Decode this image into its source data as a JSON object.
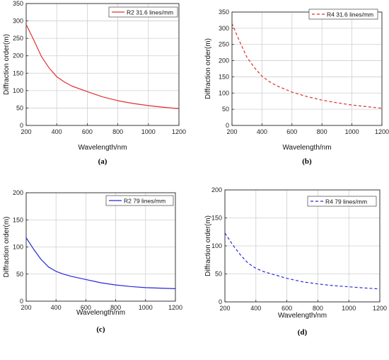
{
  "chart_data": [
    {
      "type": "line",
      "panel_label": "(a)",
      "xlabel": "Wavelength/nm",
      "ylabel": "Diffraction order(m)",
      "xlim": [
        200,
        1200
      ],
      "ylim": [
        0,
        350
      ],
      "xticks": [
        200,
        400,
        600,
        800,
        1000,
        1200
      ],
      "yticks": [
        0,
        50,
        100,
        150,
        200,
        250,
        300,
        350
      ],
      "grid": true,
      "legend_position": "top-right",
      "series": [
        {
          "name": "R2 31.6 lines/mm",
          "color": "#e03030",
          "dash": "solid",
          "x": [
            200,
            250,
            300,
            350,
            400,
            450,
            500,
            600,
            700,
            800,
            900,
            1000,
            1100,
            1200
          ],
          "y": [
            290,
            245,
            198,
            165,
            140,
            125,
            113,
            97,
            82,
            71,
            63,
            57,
            52,
            48
          ]
        }
      ]
    },
    {
      "type": "line",
      "panel_label": "(b)",
      "xlabel": "Wavelength/nm",
      "ylabel": "Diffraction order(m)",
      "xlim": [
        200,
        1200
      ],
      "ylim": [
        0,
        350
      ],
      "xticks": [
        200,
        400,
        600,
        800,
        1000,
        1200
      ],
      "yticks": [
        0,
        50,
        100,
        150,
        200,
        250,
        300,
        350
      ],
      "grid": true,
      "legend_position": "top-right",
      "series": [
        {
          "name": "R4 31.6 lines/mm",
          "color": "#e03030",
          "dash": "dashed",
          "x": [
            200,
            250,
            300,
            350,
            400,
            450,
            500,
            600,
            700,
            800,
            900,
            1000,
            1100,
            1200
          ],
          "y": [
            315,
            260,
            210,
            178,
            152,
            135,
            122,
            103,
            89,
            78,
            70,
            63,
            58,
            53
          ]
        }
      ]
    },
    {
      "type": "line",
      "panel_label": "(c)",
      "xlabel": "Wavelength/nm",
      "ylabel": "Diffraction order(m)",
      "xlim": [
        200,
        1200
      ],
      "ylim": [
        0,
        200
      ],
      "xticks": [
        200,
        400,
        600,
        800,
        1000,
        1200
      ],
      "yticks": [
        0,
        50,
        100,
        150,
        200
      ],
      "grid": true,
      "legend_position": "top-right",
      "series": [
        {
          "name": "R2 79 lines/mm",
          "color": "#2828d8",
          "dash": "solid",
          "x": [
            200,
            250,
            300,
            350,
            400,
            450,
            500,
            600,
            700,
            800,
            900,
            1000,
            1100,
            1200
          ],
          "y": [
            117,
            96,
            77,
            63,
            55,
            50,
            46,
            40,
            34,
            30,
            27,
            25,
            24,
            23
          ]
        }
      ]
    },
    {
      "type": "line",
      "panel_label": "(d)",
      "xlabel": "Wavelength/nm",
      "ylabel": "Diffraction order(m)",
      "xlim": [
        200,
        1200
      ],
      "ylim": [
        0,
        200
      ],
      "xticks": [
        200,
        400,
        600,
        800,
        1000,
        1200
      ],
      "yticks": [
        0,
        50,
        100,
        150,
        200
      ],
      "grid": true,
      "legend_position": "top-right",
      "series": [
        {
          "name": "R4 79 lines/mm",
          "color": "#2828d8",
          "dash": "dashed",
          "x": [
            200,
            250,
            300,
            350,
            400,
            450,
            500,
            600,
            700,
            800,
            900,
            1000,
            1100,
            1200
          ],
          "y": [
            123,
            102,
            84,
            69,
            60,
            54,
            50,
            42,
            36,
            32,
            29,
            27,
            25,
            23
          ]
        }
      ]
    }
  ]
}
